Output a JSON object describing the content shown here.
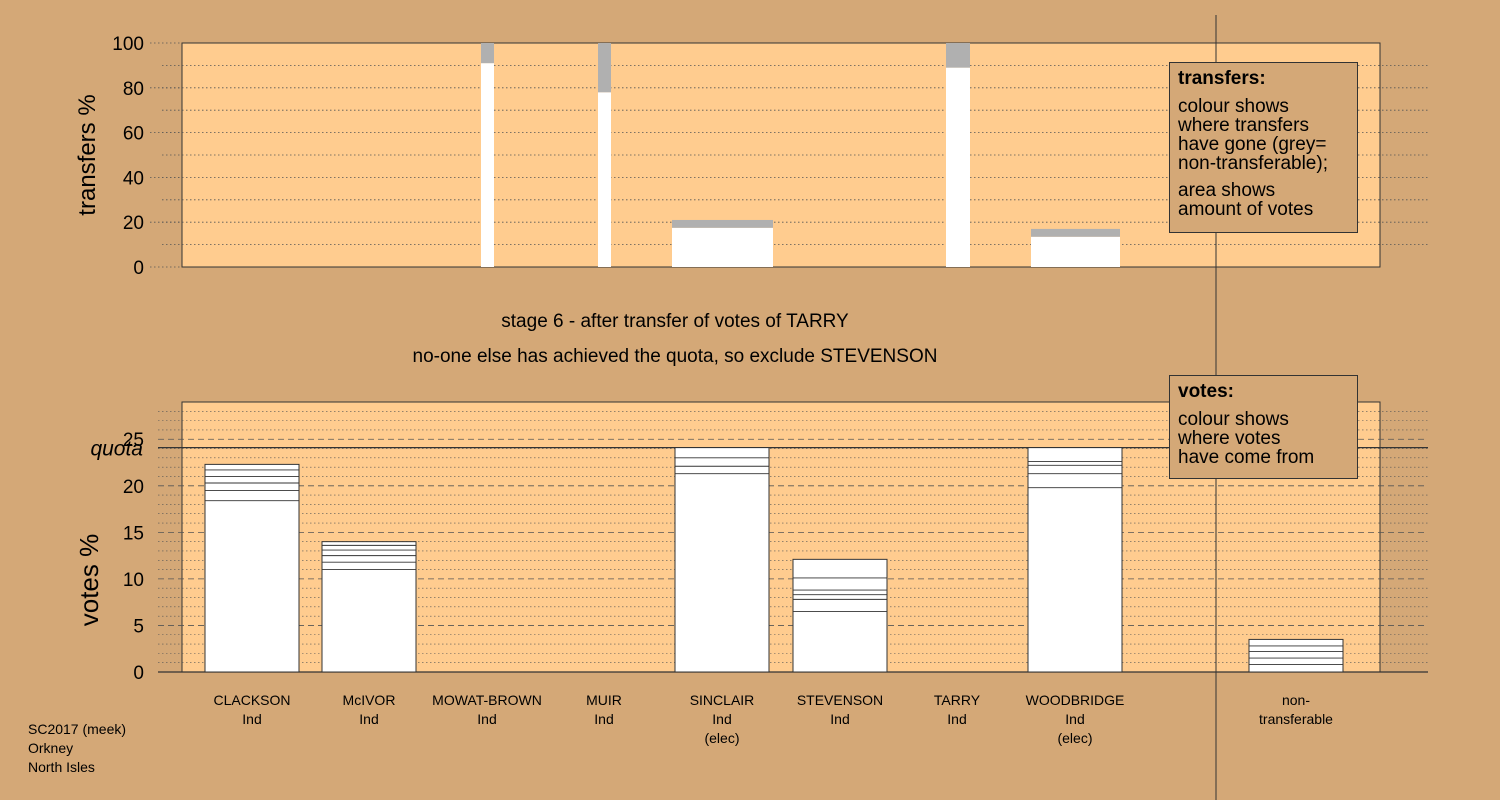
{
  "colors": {
    "background": "#d4a877",
    "plot_area": "#ffcc8f",
    "bar_fill": "#ffffff",
    "non_transferable": "#b0b0b0",
    "gridline": "#555555"
  },
  "heading": {
    "line1": "stage 6 - after transfer of votes of TARRY",
    "line2": "no-one else has achieved the quota, so exclude STEVENSON"
  },
  "footer": {
    "line1": "SC2017 (meek)",
    "line2": "Orkney",
    "line3": "North Isles"
  },
  "legend_transfers": {
    "title": "transfers:",
    "line1": "colour shows",
    "line2": "where transfers",
    "line3": "have gone (grey=",
    "line4": "non-transferable);",
    "line5": "area shows",
    "line6": "amount of votes"
  },
  "legend_votes": {
    "title": "votes:",
    "line1": "colour shows",
    "line2": "where votes",
    "line3": "have come from"
  },
  "candidates": [
    {
      "name": "CLACKSON",
      "party": "Ind",
      "status": ""
    },
    {
      "name": "McIVOR",
      "party": "Ind",
      "status": ""
    },
    {
      "name": "MOWAT-BROWN",
      "party": "Ind",
      "status": ""
    },
    {
      "name": "MUIR",
      "party": "Ind",
      "status": ""
    },
    {
      "name": "SINCLAIR",
      "party": "Ind",
      "status": "(elec)"
    },
    {
      "name": "STEVENSON",
      "party": "Ind",
      "status": ""
    },
    {
      "name": "TARRY",
      "party": "Ind",
      "status": ""
    },
    {
      "name": "WOODBRIDGE",
      "party": "Ind",
      "status": "(elec)"
    }
  ],
  "non_transferable_label": [
    "non-",
    "transferable"
  ],
  "chart_data": [
    {
      "type": "bar",
      "panel": "transfers",
      "ylabel": "transfers %",
      "ylim": [
        0,
        100
      ],
      "yticks": [
        0,
        20,
        40,
        60,
        80,
        100
      ],
      "bars": [
        {
          "candidate": "MOWAT-BROWN",
          "position": "between CLACKSON-MUIR column",
          "slot": 2.6,
          "width_share": 0.11,
          "transferable": 91,
          "total": 100
        },
        {
          "candidate": "MUIR",
          "slot": 3.6,
          "width_share": 0.11,
          "transferable": 78,
          "total": 100
        },
        {
          "candidate": "SINCLAIR",
          "slot": 4.0,
          "width_share": 0.85,
          "transferable": 17.5,
          "total": 21
        },
        {
          "candidate": "TARRY",
          "slot": 6.0,
          "width_share": 0.2,
          "transferable": 89,
          "total": 100
        },
        {
          "candidate": "WOODBRIDGE",
          "slot": 7.0,
          "width_share": 0.75,
          "transferable": 13.5,
          "total": 17
        }
      ],
      "grid": true
    },
    {
      "type": "bar",
      "panel": "votes",
      "ylabel": "votes %",
      "ylim": [
        0,
        29
      ],
      "yticks": [
        0,
        5,
        10,
        15,
        20,
        25
      ],
      "quota_label": "quota",
      "quota": 24.1,
      "categories": [
        "CLACKSON",
        "McIVOR",
        "MOWAT-BROWN",
        "MUIR",
        "SINCLAIR",
        "STEVENSON",
        "TARRY",
        "WOODBRIDGE",
        "non-transferable"
      ],
      "stacks": [
        [
          18.4,
          19.5,
          20.3,
          21.0,
          21.7,
          22.3
        ],
        [
          11.0,
          11.8,
          12.5,
          13.1,
          13.6,
          14.0
        ],
        [],
        [],
        [
          21.3,
          22.1,
          23.0,
          24.1
        ],
        [
          6.5,
          7.8,
          8.3,
          8.8,
          10.1,
          12.1
        ],
        [],
        [
          19.8,
          21.3,
          22.2,
          22.6,
          24.1
        ],
        [
          0.8,
          1.5,
          2.2,
          2.8,
          3.5
        ]
      ],
      "totals": [
        22.3,
        14.0,
        0,
        0,
        24.1,
        12.1,
        0,
        24.1,
        3.5
      ],
      "grid": true
    }
  ]
}
